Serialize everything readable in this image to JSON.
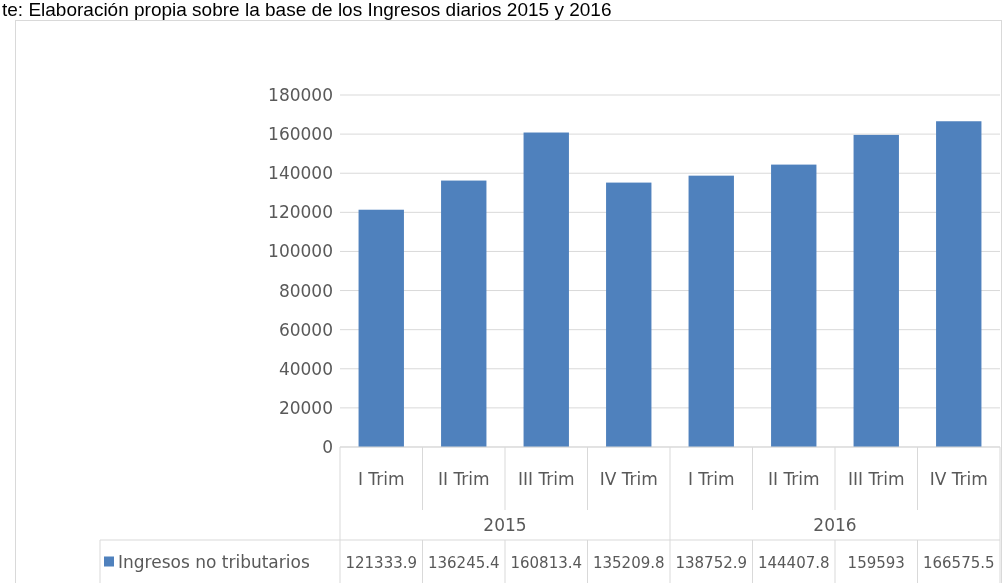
{
  "chart_data": {
    "type": "bar",
    "annotations": [
      "te: Elaboración propia sobre la base de los Ingresos diarios 2015 y 2016",
      "2015",
      "2016"
    ],
    "categories": [
      "I Trim",
      "II Trim",
      "III Trim",
      "IV Trim",
      "I Trim",
      "II Trim",
      "III Trim",
      "IV Trim"
    ],
    "series": [
      {
        "name": "Ingresos no tributarios",
        "color": "#4f81bd",
        "values": [
          121333.9,
          136245.4,
          160813.4,
          135209.8,
          138752.9,
          144407.8,
          159593,
          166575.5
        ]
      }
    ],
    "ylim": [
      0,
      180000
    ],
    "yticks": [
      0,
      20000,
      40000,
      60000,
      80000,
      100000,
      120000,
      140000,
      160000,
      180000
    ],
    "grid": "y",
    "data_labels": true,
    "legend": "bottom"
  }
}
